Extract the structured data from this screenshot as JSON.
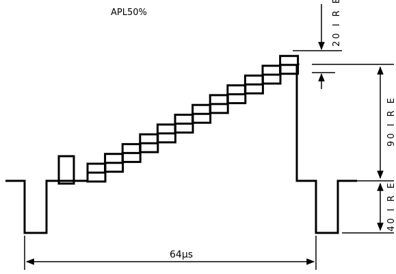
{
  "diagram": {
    "title": "APL50%",
    "period_label": "64μs",
    "levels": {
      "upper": "20 I R E",
      "middle": "90 I R E",
      "lower": "40 I R E"
    }
  }
}
